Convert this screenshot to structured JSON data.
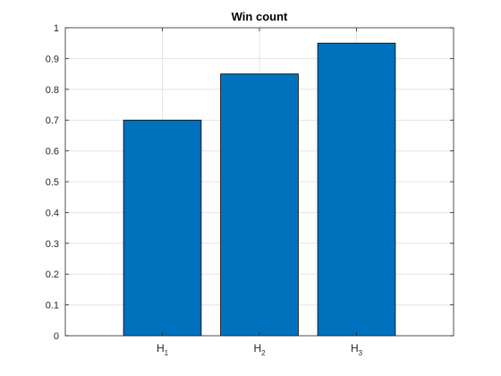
{
  "chart_data": {
    "type": "bar",
    "title": "Win count",
    "xlabel": "",
    "ylabel": "",
    "categories": [
      {
        "base": "H",
        "sub": "1"
      },
      {
        "base": "H",
        "sub": "2"
      },
      {
        "base": "H",
        "sub": "3"
      }
    ],
    "values": [
      0.7,
      0.85,
      0.95
    ],
    "ylim": [
      0,
      1
    ],
    "yticks": [
      "0",
      "0.1",
      "0.2",
      "0.3",
      "0.4",
      "0.5",
      "0.6",
      "0.7",
      "0.8",
      "0.9",
      "1"
    ],
    "grid": true,
    "bar_color": "#0072BD",
    "bar_edge_color": "#000000",
    "grid_color": "#e3e3e3",
    "axis_color": "#262626"
  }
}
